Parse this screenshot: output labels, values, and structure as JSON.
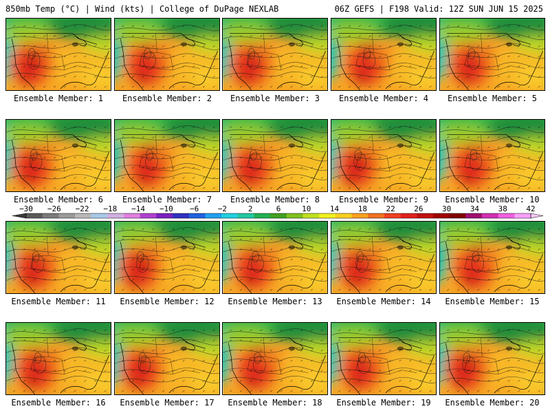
{
  "header": {
    "left": "850mb Temp (°C) | Wind (kts) | College of DuPage NEXLAB",
    "right": "06Z GEFS | F198 Valid: 12Z SUN JUN 15 2025"
  },
  "colorbar": {
    "labels": [
      "-30",
      "-26",
      "-22",
      "-18",
      "-14",
      "-10",
      "-6",
      "-2",
      "2",
      "6",
      "10",
      "14",
      "18",
      "22",
      "26",
      "30",
      "34",
      "38",
      "42"
    ],
    "colors": [
      "#5a5a5a",
      "#7a7a7a",
      "#999999",
      "#b8b8b8",
      "#a9c8e8",
      "#d0b0e0",
      "#e080e0",
      "#b040d0",
      "#7a20c0",
      "#3030c0",
      "#2060e0",
      "#20a0f0",
      "#20d0e0",
      "#20c8a0",
      "#20b050",
      "#40a020",
      "#80c020",
      "#c0e020",
      "#f0f020",
      "#f8d020",
      "#f8a020",
      "#f07020",
      "#f04020",
      "#e02020",
      "#c01010",
      "#a00000",
      "#800000",
      "#a01070",
      "#d030b0",
      "#f060e0",
      "#f8a0f8"
    ]
  },
  "members": [
    {
      "label": "Ensemble Member: 1"
    },
    {
      "label": "Ensemble Member: 2"
    },
    {
      "label": "Ensemble Member: 3"
    },
    {
      "label": "Ensemble Member: 4"
    },
    {
      "label": "Ensemble Member: 5"
    },
    {
      "label": "Ensemble Member: 6"
    },
    {
      "label": "Ensemble Member: 7"
    },
    {
      "label": "Ensemble Member: 8"
    },
    {
      "label": "Ensemble Member: 9"
    },
    {
      "label": "Ensemble Member: 10"
    },
    {
      "label": "Ensemble Member: 11"
    },
    {
      "label": "Ensemble Member: 12"
    },
    {
      "label": "Ensemble Member: 13"
    },
    {
      "label": "Ensemble Member: 14"
    },
    {
      "label": "Ensemble Member: 15"
    },
    {
      "label": "Ensemble Member: 16"
    },
    {
      "label": "Ensemble Member: 17"
    },
    {
      "label": "Ensemble Member: 18"
    },
    {
      "label": "Ensemble Member: 19"
    },
    {
      "label": "Ensemble Member: 20"
    }
  ]
}
